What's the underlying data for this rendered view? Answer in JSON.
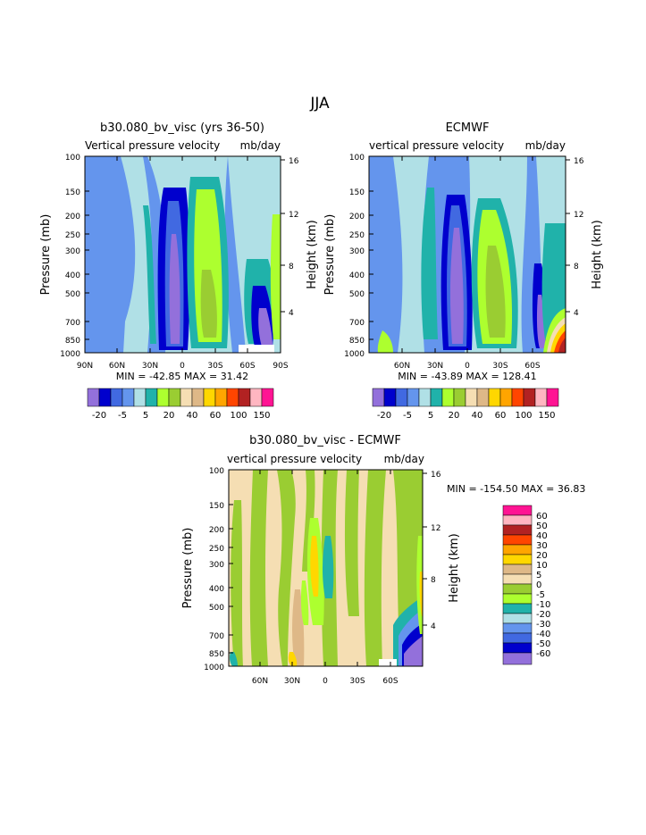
{
  "page_title": "JJA",
  "palette": [
    "#9370db",
    "#0000cd",
    "#4169e1",
    "#6495ed",
    "#b0e0e6",
    "#20b2aa",
    "#adff2f",
    "#9acd32",
    "#f5deb3",
    "#deb887",
    "#ffd700",
    "#ffa500",
    "#ff4500",
    "#b22222",
    "#ffb6c1",
    "#ff1493"
  ],
  "chart_data": [
    {
      "type": "heatmap",
      "title": "b30.080_bv_visc (yrs 36-50)",
      "subtitle_left": "Vertical pressure velocity",
      "subtitle_right": "mb/day",
      "ylabel": "Pressure (mb)",
      "ylabel_right": "Height (km)",
      "x_ticks": [
        "90N",
        "60N",
        "30N",
        "0",
        "30S",
        "60S",
        "90S"
      ],
      "y_ticks": [
        "100",
        "150",
        "200",
        "250",
        "300",
        "400",
        "500",
        "700",
        "850",
        "1000"
      ],
      "y_right_ticks": [
        "16",
        "12",
        "8",
        "4"
      ],
      "stats": "MIN = -42.85   MAX =  31.42",
      "legend_labels": [
        "-20",
        "-5",
        "5",
        "20",
        "40",
        "60",
        "100",
        "150"
      ]
    },
    {
      "type": "heatmap",
      "title": "ECMWF",
      "subtitle_left": "vertical pressure velocity",
      "subtitle_right": "mb/day",
      "ylabel": "Pressure (mb)",
      "ylabel_right": "Height (km)",
      "x_ticks": [
        "60N",
        "30N",
        "0",
        "30S",
        "60S"
      ],
      "y_ticks": [
        "100",
        "150",
        "200",
        "250",
        "300",
        "400",
        "500",
        "700",
        "850",
        "1000"
      ],
      "y_right_ticks": [
        "16",
        "12",
        "8",
        "4"
      ],
      "stats": "MIN = -43.89   MAX = 128.41",
      "legend_labels": [
        "-20",
        "-5",
        "5",
        "20",
        "40",
        "60",
        "100",
        "150"
      ]
    },
    {
      "type": "heatmap",
      "title": "b30.080_bv_visc - ECMWF",
      "subtitle_left": "vertical pressure velocity",
      "subtitle_right": "mb/day",
      "ylabel": "Pressure (mb)",
      "ylabel_right": "Height (km)",
      "x_ticks": [
        "60N",
        "30N",
        "0",
        "30S",
        "60S"
      ],
      "y_ticks": [
        "100",
        "150",
        "200",
        "250",
        "300",
        "400",
        "500",
        "700",
        "850",
        "1000"
      ],
      "y_right_ticks": [
        "16",
        "12",
        "8",
        "4"
      ],
      "stats": "MIN = -154.50   MAX =  36.83",
      "legend_labels": [
        "60",
        "50",
        "40",
        "30",
        "20",
        "10",
        "5",
        "0",
        "-5",
        "-10",
        "-20",
        "-30",
        "-40",
        "-50",
        "-60"
      ]
    }
  ]
}
